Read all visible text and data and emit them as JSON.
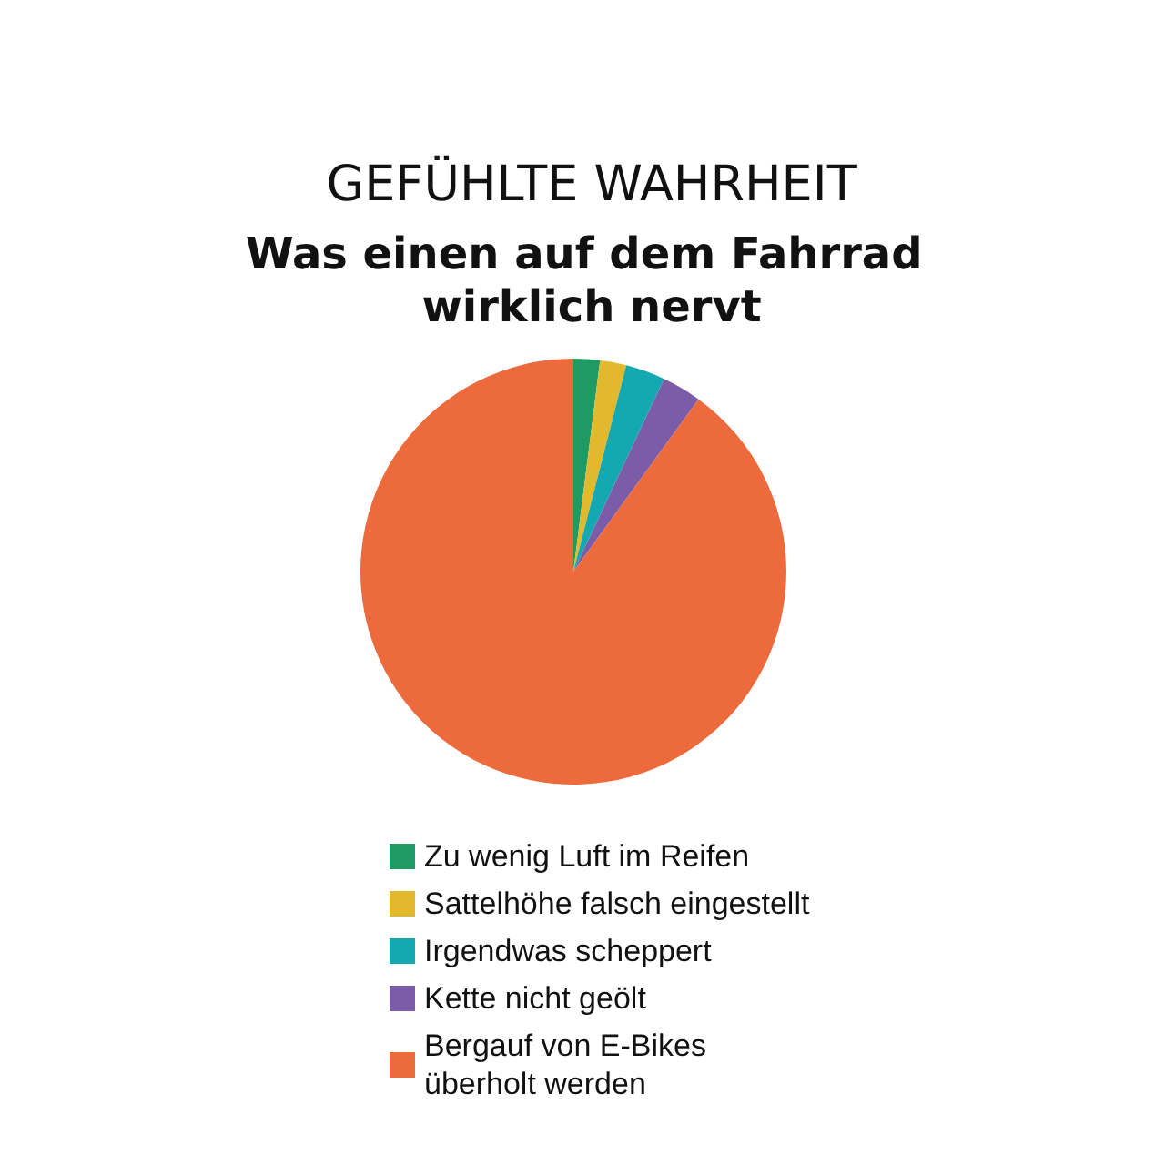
{
  "chart_data": {
    "type": "pie",
    "title": "GEFÜHLTE WAHRHEIT",
    "subtitle": "Was einen auf dem Fahrrad wirklich nervt",
    "categories": [
      "Zu wenig Luft im Reifen",
      "Sattelhöhe falsch eingestellt",
      "Irgendwas scheppert",
      "Kette nicht geölt",
      "Bergauf von E-Bikes überholt werden"
    ],
    "values": [
      2,
      2,
      3,
      3,
      90
    ],
    "colors": [
      "#1f9a63",
      "#e2b92c",
      "#14a9b1",
      "#7a5ca8",
      "#ec6a3b"
    ],
    "legend": "bottom"
  }
}
